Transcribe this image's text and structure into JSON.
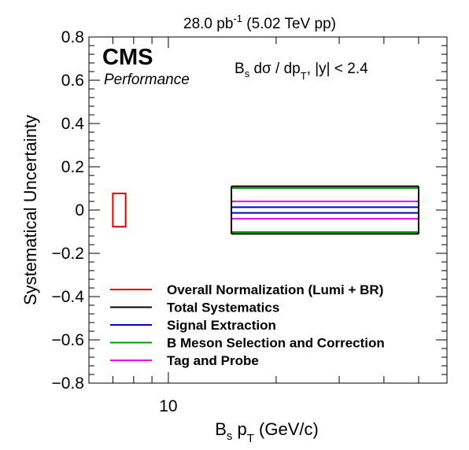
{
  "chart_data": {
    "type": "bar",
    "title": {
      "lumi": "28.0 pb",
      "lumi_exp": "-1",
      "rest": " (5.02 TeV pp)"
    },
    "experiment": "CMS",
    "status": "Performance",
    "observable": {
      "pre": "B",
      "pre_sub": "s",
      "mid": " dσ / dp",
      "mid_sub": "T",
      "post": ", |y| < 2.4"
    },
    "xlabel": {
      "pre": "B",
      "pre_sub": "s",
      "mid": " p",
      "mid_sub": "T",
      "post": " (GeV/c)"
    },
    "ylabel": "Systematical Uncertainty",
    "x_scale": "log",
    "xlim": [
      6,
      60
    ],
    "x_tick_labels": [
      {
        "value": 10,
        "label": "10"
      }
    ],
    "ylim": [
      -0.8,
      0.8
    ],
    "y_tick_labels": [
      {
        "value": 0.8,
        "label": "0.8"
      },
      {
        "value": 0.6,
        "label": "0.6"
      },
      {
        "value": 0.4,
        "label": "0.4"
      },
      {
        "value": 0.2,
        "label": "0.2"
      },
      {
        "value": 0,
        "label": "0"
      },
      {
        "value": -0.2,
        "label": "−0.2"
      },
      {
        "value": -0.4,
        "label": "−0.4"
      },
      {
        "value": -0.6,
        "label": "−0.6"
      },
      {
        "value": -0.8,
        "label": "−0.8"
      }
    ],
    "grid": false,
    "legend_position": "bottom-left",
    "normalization_box": {
      "x_range": [
        7.0,
        7.6
      ],
      "value": 0.077,
      "color": "#e00000"
    },
    "bin": {
      "x_range": [
        15,
        50
      ]
    },
    "series": [
      {
        "name": "Overall Normalization (Lumi + BR)",
        "color": "#e00000",
        "value": 0.077
      },
      {
        "name": "Total Systematics",
        "color": "#000000",
        "value": 0.11
      },
      {
        "name": "Signal Extraction",
        "color": "#0000cc",
        "value": 0.013
      },
      {
        "name": "B Meson Selection and Correction",
        "color": "#009900",
        "value": 0.102
      },
      {
        "name": "Tag and Probe",
        "color": "#ee00ee",
        "value": 0.04
      }
    ]
  }
}
